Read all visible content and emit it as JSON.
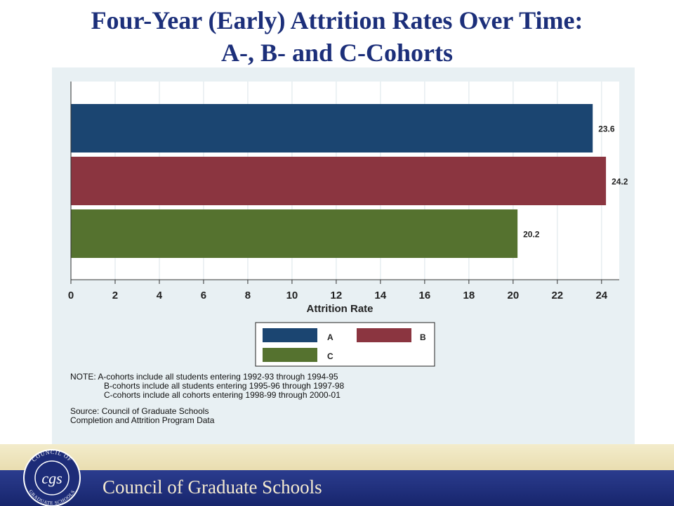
{
  "slide": {
    "title_line1": "Four-Year (Early) Attrition Rates Over Time:",
    "title_line2": "A-, B- and C-Cohorts"
  },
  "chart_data": {
    "type": "bar",
    "orientation": "horizontal",
    "categories": [
      "A",
      "B",
      "C"
    ],
    "values": [
      23.6,
      24.2,
      20.2
    ],
    "value_labels": [
      "23.6",
      "24.2",
      "20.2"
    ],
    "colors": [
      "#1b4571",
      "#8b3540",
      "#55722f"
    ],
    "xlabel": "Attrition Rate",
    "xlim": [
      0,
      24.8
    ],
    "xticks": [
      0,
      2,
      4,
      6,
      8,
      10,
      12,
      14,
      16,
      18,
      20,
      22,
      24
    ],
    "grid": true,
    "legend": {
      "position": "bottom",
      "entries": [
        "A",
        "B",
        "C"
      ]
    }
  },
  "notes": {
    "line1": "NOTE: A-cohorts include all students entering 1992-93 through 1994-95",
    "line2": "B-cohorts include all students entering 1995-96 through 1997-98",
    "line3": "C-cohorts include all cohorts entering 1998-99 through 2000-01",
    "source1": "Source: Council of Graduate Schools",
    "source2": "Completion and Attrition Program Data"
  },
  "footer": {
    "org_name": "Council of Graduate Schools",
    "seal_text_top": "COUNCIL OF",
    "seal_text_bottom": "GRADUATE SCHOOLS",
    "seal_monogram": "cgs"
  }
}
